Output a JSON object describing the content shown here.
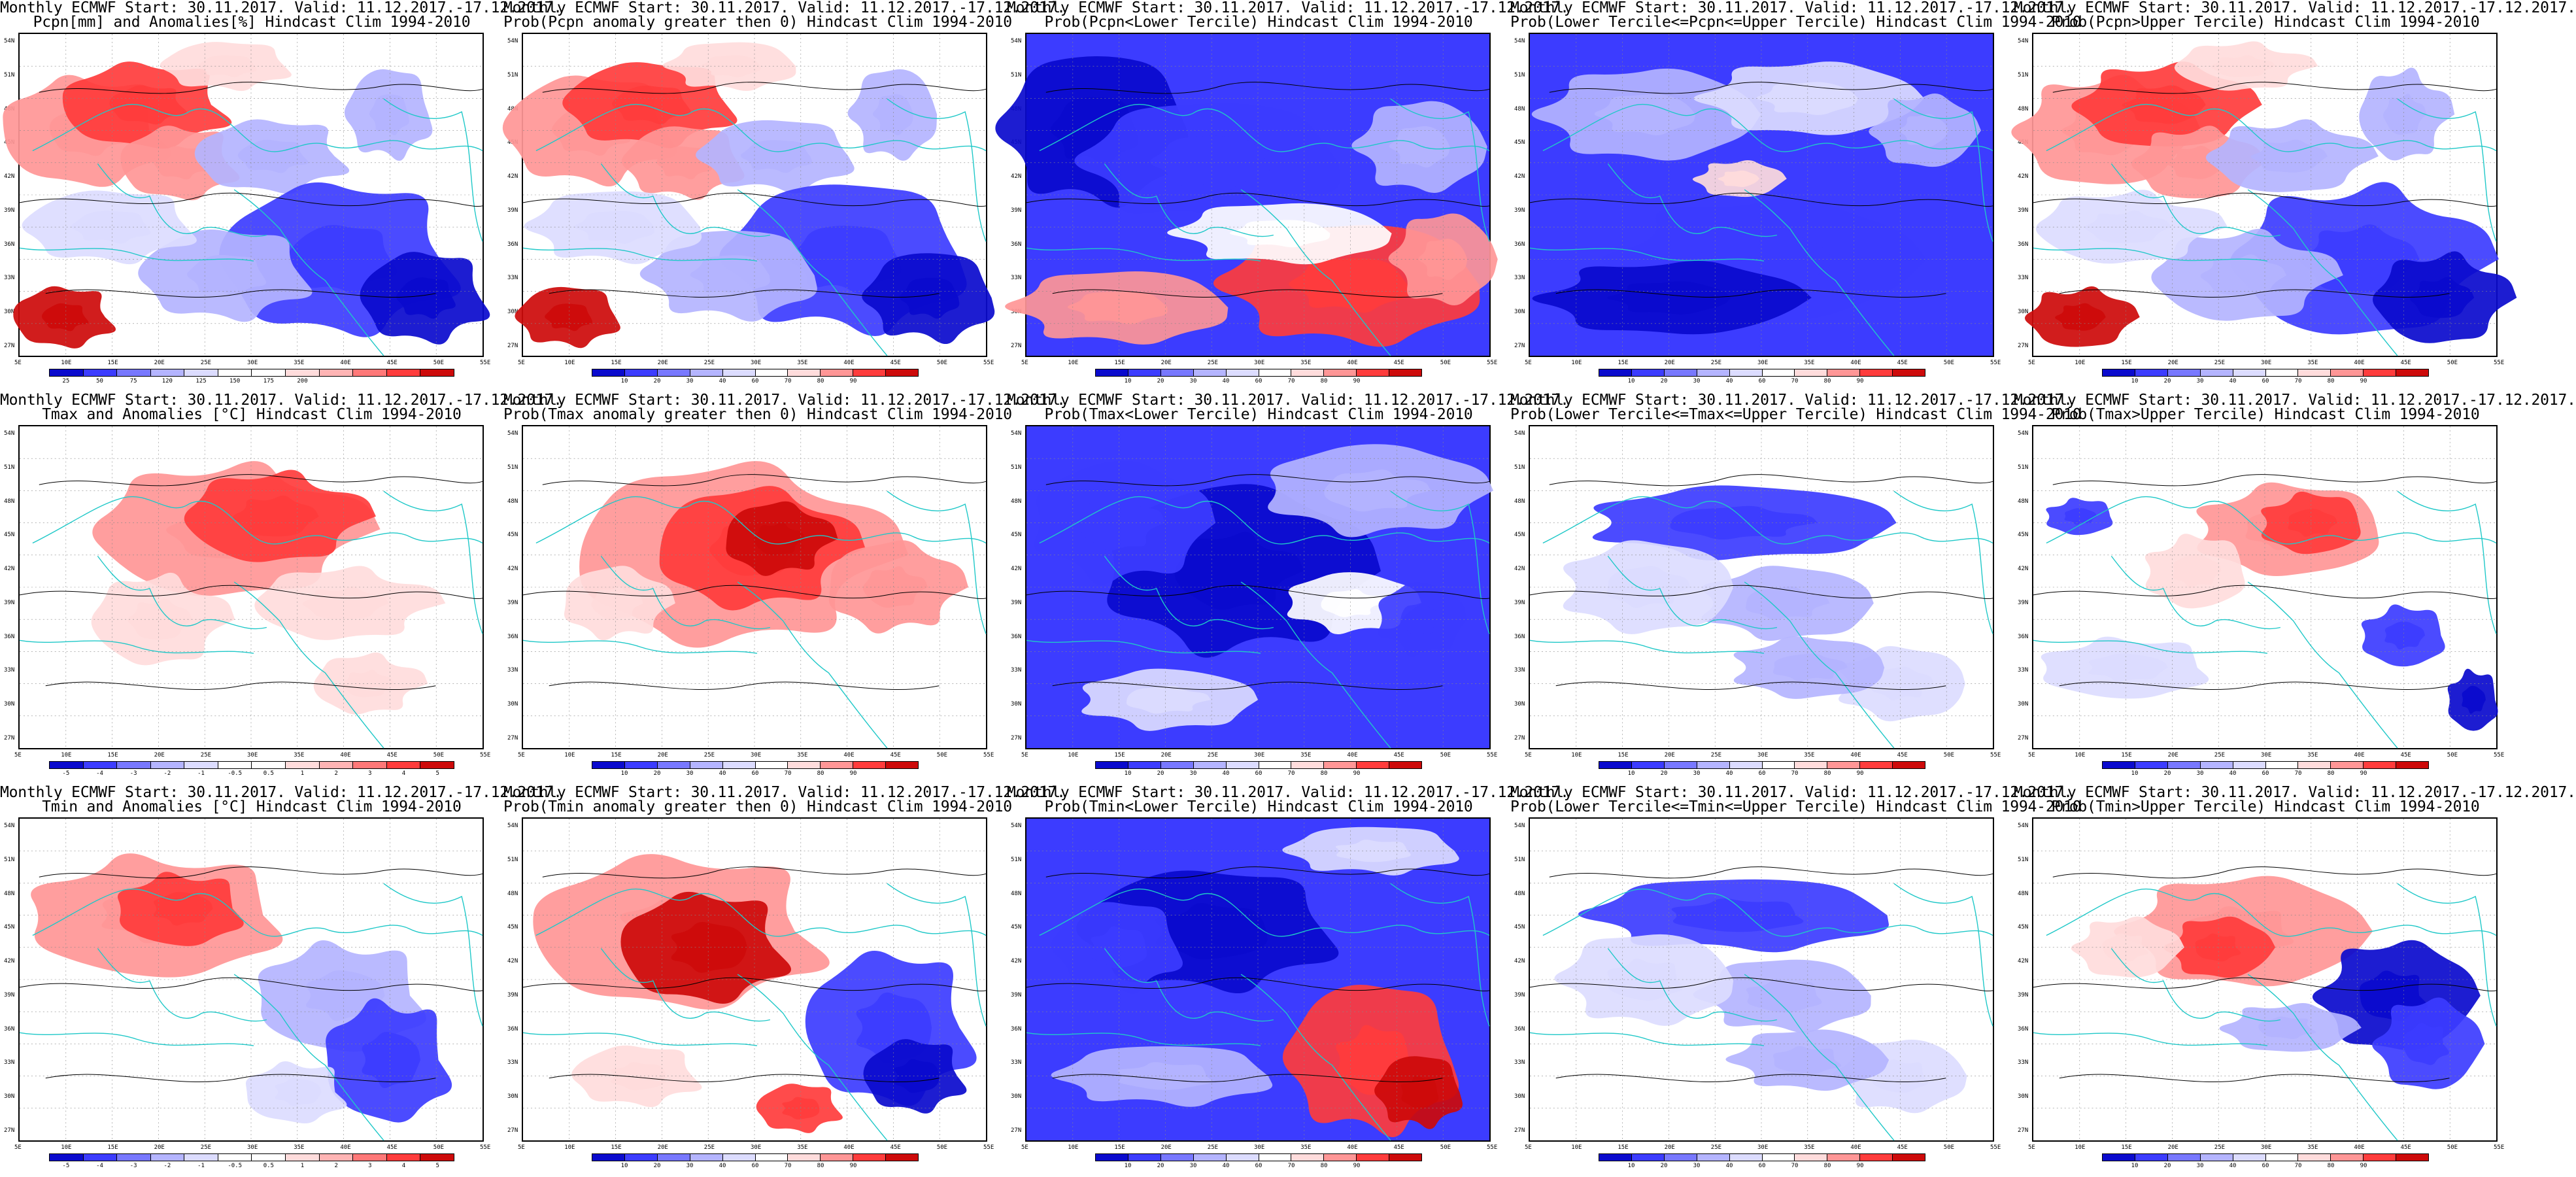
{
  "palettes": {
    "anomaly": [
      "#0a0acd",
      "#3c3cff",
      "#7878ff",
      "#b4b4ff",
      "#dcdcff",
      "#ffffff",
      "#ffffff",
      "#ffdcdc",
      "#ffb4b4",
      "#ff7878",
      "#ff3c3c",
      "#cd0a0a"
    ],
    "prob": [
      "#0a0acd",
      "#3c3cff",
      "#7878ff",
      "#b4b4ff",
      "#dcdcff",
      "#ffffff",
      "#ffdcdc",
      "#ff9696",
      "#ff3c3c",
      "#cd0a0a"
    ]
  },
  "colorbars": {
    "pcpn": [
      "25",
      "50",
      "75",
      "120",
      "125",
      "150",
      "175",
      "200"
    ],
    "temp": [
      "-5",
      "-4",
      "-3",
      "-2",
      "-1",
      "-0.5",
      "0.5",
      "1",
      "2",
      "3",
      "4",
      "5"
    ],
    "prob": [
      "10",
      "20",
      "30",
      "40",
      "60",
      "70",
      "80",
      "90"
    ]
  },
  "axes": {
    "lat": [
      "54N",
      "51N",
      "48N",
      "45N",
      "42N",
      "39N",
      "36N",
      "33N",
      "30N",
      "27N"
    ],
    "lon": [
      "5E",
      "10E",
      "15E",
      "20E",
      "25E",
      "30E",
      "35E",
      "40E",
      "45E",
      "50E",
      "55E"
    ]
  },
  "panels": [
    {
      "line1": "Monthly ECMWF Start: 30.11.2017. Valid: 11.12.2017.-17.12.2017.",
      "line2": "Pcpn[mm] and Anomalies[%] Hindcast Clim 1994-2010",
      "bar": "pcpn",
      "pattern": "pcpn_anom"
    },
    {
      "line1": "Monthly ECMWF Start: 30.11.2017. Valid: 11.12.2017.-17.12.2017.",
      "line2": "Prob(Pcpn anomaly greater then 0) Hindcast Clim 1994-2010",
      "bar": "prob",
      "pattern": "pcpn_anom"
    },
    {
      "line1": "Monthly ECMWF Start: 30.11.2017. Valid: 11.12.2017.-17.12.2017.",
      "line2": "Prob(Pcpn<Lower Tercile) Hindcast Clim 1994-2010",
      "bar": "prob",
      "pattern": "pcpn_lower"
    },
    {
      "line1": "Monthly ECMWF Start: 30.11.2017. Valid: 11.12.2017.-17.12.2017.",
      "line2": "Prob(Lower Tercile<=Pcpn<=Upper Tercile) Hindcast Clim 1994-2010",
      "bar": "prob",
      "pattern": "pcpn_mid"
    },
    {
      "line1": "Monthly ECMWF Start: 30.11.2017. Valid: 11.12.2017.-17.12.2017.",
      "line2": "Prob(Pcpn>Upper Tercile) Hindcast Clim 1994-2010",
      "bar": "prob",
      "pattern": "pcpn_anom"
    },
    {
      "line1": "Monthly ECMWF Start: 30.11.2017. Valid: 11.12.2017.-17.12.2017.",
      "line2": "Tmax and Anomalies [°C] Hindcast Clim 1994-2010",
      "bar": "temp",
      "pattern": "tmax_anom"
    },
    {
      "line1": "Monthly ECMWF Start: 30.11.2017. Valid: 11.12.2017.-17.12.2017.",
      "line2": "Prob(Tmax anomaly greater then 0) Hindcast Clim 1994-2010",
      "bar": "prob",
      "pattern": "tmax_strong"
    },
    {
      "line1": "Monthly ECMWF Start: 30.11.2017. Valid: 11.12.2017.-17.12.2017.",
      "line2": "Prob(Tmax<Lower Tercile) Hindcast Clim 1994-2010",
      "bar": "prob",
      "pattern": "tmax_lower"
    },
    {
      "line1": "Monthly ECMWF Start: 30.11.2017. Valid: 11.12.2017.-17.12.2017.",
      "line2": "Prob(Lower Tercile<=Tmax<=Upper Tercile) Hindcast Clim 1994-2010",
      "bar": "prob",
      "pattern": "t_mid"
    },
    {
      "line1": "Monthly ECMWF Start: 30.11.2017. Valid: 11.12.2017.-17.12.2017.",
      "line2": "Prob(Tmax>Upper Tercile) Hindcast Clim 1994-2010",
      "bar": "prob",
      "pattern": "tmax_upper"
    },
    {
      "line1": "Monthly ECMWF Start: 30.11.2017. Valid: 11.12.2017.-17.12.2017.",
      "line2": "Tmin and Anomalies [°C] Hindcast Clim 1994-2010",
      "bar": "temp",
      "pattern": "tmin_anom"
    },
    {
      "line1": "Monthly ECMWF Start: 30.11.2017. Valid: 11.12.2017.-17.12.2017.",
      "line2": "Prob(Tmin anomaly greater then 0) Hindcast Clim 1994-2010",
      "bar": "prob",
      "pattern": "tmin_strong"
    },
    {
      "line1": "Monthly ECMWF Start: 30.11.2017. Valid: 11.12.2017.-17.12.2017.",
      "line2": "Prob(Tmin<Lower Tercile) Hindcast Clim 1994-2010",
      "bar": "prob",
      "pattern": "tmin_lower"
    },
    {
      "line1": "Monthly ECMWF Start: 30.11.2017. Valid: 11.12.2017.-17.12.2017.",
      "line2": "Prob(Lower Tercile<=Tmin<=Upper Tercile) Hindcast Clim 1994-2010",
      "bar": "prob",
      "pattern": "t_mid"
    },
    {
      "line1": "Monthly ECMWF Start: 30.11.2017. Valid: 11.12.2017.-17.12.2017.",
      "line2": "Prob(Tmin>Upper Tercile) Hindcast Clim 1994-2010",
      "bar": "prob",
      "pattern": "tmin_upper"
    }
  ]
}
